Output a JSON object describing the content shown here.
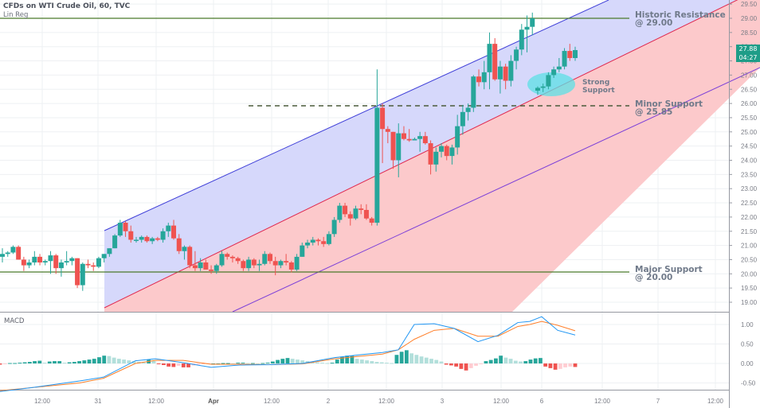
{
  "header": {
    "title": "CFDs on WTI Crude Oil, 60, TVC",
    "indicator": "Lin Reg"
  },
  "macd_pane": {
    "label": "MACD"
  },
  "last_price": {
    "value": "27.88",
    "countdown": "04:27",
    "color": "#1e9d88"
  },
  "annotations": {
    "historic_resistance": {
      "line1": "Historic Resistance",
      "line2": "@ 29.00"
    },
    "minor_support": {
      "line1": "Minor Support",
      "line2": "@ 25.85"
    },
    "major_support": {
      "line1": "Major Support",
      "line2": "@ 20.00"
    },
    "strong_support": {
      "line1": "Strong",
      "line2": "Support"
    }
  },
  "colors": {
    "up_candle": "#26a69a",
    "down_candle": "#ef5350",
    "channel_upper_fill": "#d6d8fb",
    "channel_lower_fill": "#fcc9cb",
    "channel_upper_line": "#3f3fd8",
    "channel_mid_line": "#e0284e",
    "channel_lower_line": "#7b3fd8",
    "horizontal_level": "#4a7a2a",
    "ellipse": "#5ce0e6",
    "macd_line": "#2196f3",
    "signal_line": "#ff7f2a"
  },
  "chart_data": [
    {
      "type": "candlestick",
      "title": "CFDs on WTI Crude Oil, 60, TVC",
      "subtitle": "Lin Reg",
      "price_axis": {
        "ticks": [
          "29.50",
          "29.00",
          "28.50",
          "28.00",
          "27.50",
          "27.00",
          "26.50",
          "26.00",
          "25.50",
          "25.00",
          "24.50",
          "24.00",
          "23.50",
          "23.00",
          "22.50",
          "22.00",
          "21.50",
          "21.00",
          "20.50",
          "20.00",
          "19.50",
          "19.00"
        ],
        "range": [
          18.8,
          29.6
        ]
      },
      "time_axis": {
        "ticks": [
          "12:00",
          "31",
          "12:00",
          "Apr",
          "12:00",
          "2",
          "12:00",
          "3",
          "12:00",
          "6",
          "12:00",
          "7",
          "12:00"
        ]
      },
      "horizontal_levels": [
        {
          "label": "Historic Resistance @ 29.00",
          "value": 29.0,
          "style": "solid"
        },
        {
          "label": "Minor Support @ 25.85",
          "value": 25.85,
          "style": "dashed"
        },
        {
          "label": "Major Support @ 20.00",
          "value": 20.0,
          "style": "solid"
        }
      ],
      "linear_regression_channel": {
        "start_x_label": "31 (approx 02:00)",
        "upper_start": 21.8,
        "upper_end": 30.4,
        "mid_start": 19.1,
        "mid_end": 29.7,
        "lower_start": 18.7,
        "lower_end": 27.2
      },
      "highlight": {
        "label": "Strong Support",
        "shape": "ellipse",
        "center_price": 26.6
      },
      "last_price": 27.88,
      "candles_approx": [
        {
          "o": 20.6,
          "h": 20.9,
          "l": 20.4,
          "c": 20.7
        },
        {
          "o": 20.7,
          "h": 20.8,
          "l": 20.6,
          "c": 20.75
        },
        {
          "o": 20.75,
          "h": 21.0,
          "l": 20.7,
          "c": 20.95
        },
        {
          "o": 20.95,
          "h": 21.0,
          "l": 20.5,
          "c": 20.5
        },
        {
          "o": 20.5,
          "h": 20.6,
          "l": 20.1,
          "c": 20.3
        },
        {
          "o": 20.3,
          "h": 20.5,
          "l": 20.2,
          "c": 20.4
        },
        {
          "o": 20.4,
          "h": 20.8,
          "l": 20.3,
          "c": 20.6
        },
        {
          "o": 20.6,
          "h": 20.7,
          "l": 20.3,
          "c": 20.4
        },
        {
          "o": 20.4,
          "h": 20.5,
          "l": 20.3,
          "c": 20.45
        },
        {
          "o": 20.45,
          "h": 20.8,
          "l": 20.0,
          "c": 20.65
        },
        {
          "o": 20.65,
          "h": 20.7,
          "l": 20.0,
          "c": 20.2
        },
        {
          "o": 20.2,
          "h": 20.5,
          "l": 19.9,
          "c": 20.4
        },
        {
          "o": 20.4,
          "h": 20.8,
          "l": 20.3,
          "c": 20.45
        },
        {
          "o": 20.45,
          "h": 20.6,
          "l": 20.3,
          "c": 20.55
        },
        {
          "o": 20.55,
          "h": 20.55,
          "l": 19.5,
          "c": 19.6
        },
        {
          "o": 19.6,
          "h": 20.4,
          "l": 19.4,
          "c": 20.35
        },
        {
          "o": 20.35,
          "h": 20.5,
          "l": 20.2,
          "c": 20.3
        },
        {
          "o": 20.3,
          "h": 20.4,
          "l": 20.1,
          "c": 20.25
        },
        {
          "o": 20.25,
          "h": 20.6,
          "l": 20.2,
          "c": 20.55
        },
        {
          "o": 20.55,
          "h": 20.7,
          "l": 20.4,
          "c": 20.7
        },
        {
          "o": 20.7,
          "h": 20.9,
          "l": 20.6,
          "c": 20.9
        },
        {
          "o": 20.9,
          "h": 21.4,
          "l": 20.9,
          "c": 21.35
        },
        {
          "o": 21.35,
          "h": 21.9,
          "l": 21.3,
          "c": 21.8
        },
        {
          "o": 21.8,
          "h": 21.85,
          "l": 21.3,
          "c": 21.5
        }
      ]
    },
    {
      "type": "macd",
      "title": "MACD",
      "y_ticks": [
        "1.00",
        "0.50",
        "0.00",
        "-0.50"
      ],
      "ylim": [
        -0.65,
        1.15
      ],
      "series": [
        {
          "name": "MACD",
          "color": "#2196f3"
        },
        {
          "name": "Signal",
          "color": "#ff7f2a"
        },
        {
          "name": "Histogram",
          "colors": [
            "#26a69a",
            "#b2dfdb",
            "#ef5350",
            "#ffcdd2"
          ]
        }
      ],
      "x": [
        "12:00",
        "31",
        "12:00",
        "Apr",
        "12:00",
        "2",
        "12:00",
        "3",
        "12:00",
        "6"
      ],
      "macd_values_approx": [
        -0.58,
        -0.45,
        0.05,
        0.05,
        -0.05,
        0.0,
        0.15,
        0.4,
        1.0,
        0.6,
        1.05,
        0.75
      ],
      "signal_values_approx": [
        -0.6,
        -0.5,
        0.0,
        0.1,
        -0.05,
        0.0,
        0.1,
        0.35,
        0.9,
        0.7,
        1.05,
        0.85
      ],
      "histogram_peaks_approx": [
        0.12,
        0.2,
        -0.1,
        0.14,
        0.35,
        -0.18,
        0.2,
        0.13,
        -0.16
      ]
    }
  ]
}
